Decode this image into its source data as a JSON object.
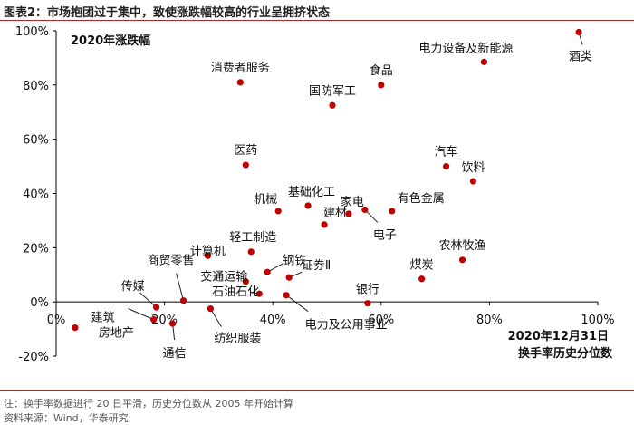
{
  "header": {
    "title": "图表2：市场抱团过于集中，致使涨跌幅较高的行业呈拥挤状态"
  },
  "notes": {
    "note": "注：换手率数据进行 20 日平滑，历史分位数从 2005 年开始计算",
    "source": "资料来源：Wind，华泰研究"
  },
  "chart_data": {
    "type": "scatter",
    "inner_title": "2020年涨跌幅",
    "xlabel_line1": "2020年12月31日",
    "xlabel_line2": "换手率历史分位数",
    "xlim": [
      0,
      100
    ],
    "ylim": [
      -20,
      100
    ],
    "x_ticks": [
      "0%",
      "20%",
      "40%",
      "60%",
      "80%",
      "100%"
    ],
    "y_ticks": [
      "-20%",
      "0%",
      "20%",
      "40%",
      "60%",
      "80%",
      "100%"
    ],
    "point_color": "#c00000",
    "points": [
      {
        "label": "酒类",
        "x": 96.5,
        "y": 99.5
      },
      {
        "label": "电力设备及新能源",
        "x": 79,
        "y": 88.5
      },
      {
        "label": "消费者服务",
        "x": 34,
        "y": 81
      },
      {
        "label": "食品",
        "x": 60,
        "y": 80
      },
      {
        "label": "国防军工",
        "x": 51,
        "y": 72.5
      },
      {
        "label": "医药",
        "x": 35,
        "y": 50.5
      },
      {
        "label": "汽车",
        "x": 72,
        "y": 50
      },
      {
        "label": "饮料",
        "x": 77,
        "y": 44.5
      },
      {
        "label": "基础化工",
        "x": 46.5,
        "y": 35.5
      },
      {
        "label": "机械",
        "x": 41,
        "y": 33.5
      },
      {
        "label": "家电",
        "x": 54,
        "y": 32.5
      },
      {
        "label": "有色金属",
        "x": 62,
        "y": 33.5
      },
      {
        "label": "电子",
        "x": 57,
        "y": 34
      },
      {
        "label": "建材",
        "x": 49.5,
        "y": 28.5
      },
      {
        "label": "农林牧渔",
        "x": 75,
        "y": 15.5
      },
      {
        "label": "计算机",
        "x": 28,
        "y": 17
      },
      {
        "label": "轻工制造",
        "x": 36,
        "y": 18.5
      },
      {
        "label": "煤炭",
        "x": 67.5,
        "y": 8.5
      },
      {
        "label": "证券Ⅱ",
        "x": 43,
        "y": 9
      },
      {
        "label": "交通运输",
        "x": 35,
        "y": 7.5
      },
      {
        "label": "钢铁",
        "x": 39,
        "y": 11
      },
      {
        "label": "石油石化",
        "x": 37.5,
        "y": 3
      },
      {
        "label": "电力及公用事业",
        "x": 42.5,
        "y": 2.5
      },
      {
        "label": "商贸零售",
        "x": 23.5,
        "y": 0.5
      },
      {
        "label": "银行",
        "x": 57.5,
        "y": -0.5
      },
      {
        "label": "传媒",
        "x": 18.5,
        "y": -2
      },
      {
        "label": "纺织服装",
        "x": 28.5,
        "y": -2.5
      },
      {
        "label": "建筑",
        "x": 18,
        "y": -6.5
      },
      {
        "label": "通信",
        "x": 21.5,
        "y": -8
      },
      {
        "label": "房地产",
        "x": 3.5,
        "y": -9.5
      }
    ]
  }
}
